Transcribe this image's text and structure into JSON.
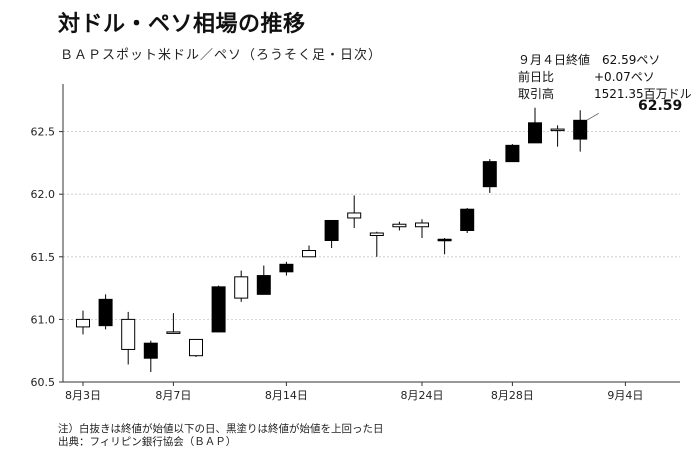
{
  "title": "対ドル・ペソ相場の推移",
  "subtitle": "ＢＡＰスポット米ドル／ペソ（ろうそく足・日次）",
  "info": {
    "header": "９月４日終値　62.59ペソ",
    "rows": [
      {
        "label": "前日比",
        "value": "+0.07ペソ"
      },
      {
        "label": "取引高",
        "value": "1521.35百万ドル"
      }
    ]
  },
  "last_value_label": "62.59",
  "footnote": {
    "note": "注）白抜きは終値が始値以下の日、黒塗りは終値が始値を上回った日",
    "source": "出典：フィリピン銀行協会（ＢＡＰ）"
  },
  "chart_data": {
    "type": "candlestick",
    "ylim": [
      60.5,
      62.88
    ],
    "y_ticks": [
      60.5,
      61.0,
      61.5,
      62.0,
      62.5
    ],
    "y_tick_labels": [
      "60.5",
      "61.0",
      "61.5",
      "62.0",
      "62.5"
    ],
    "x_tick_labels": [
      "8月3日",
      "8月7日",
      "8月14日",
      "8月24日",
      "8月28日",
      "9月4日"
    ],
    "x_tick_index": [
      0,
      4,
      9,
      15,
      19,
      24
    ],
    "grid": "horizontal",
    "legend": "none",
    "colors": {
      "up": "#000000",
      "down": "#ffffff",
      "axis": "#333333",
      "grid": "#c8c8c8"
    },
    "candles": [
      {
        "open": 61.0,
        "high": 61.07,
        "low": 60.88,
        "close": 60.94
      },
      {
        "open": 60.95,
        "high": 61.2,
        "low": 60.92,
        "close": 61.16
      },
      {
        "open": 61.0,
        "high": 61.06,
        "low": 60.64,
        "close": 60.76
      },
      {
        "open": 60.69,
        "high": 60.83,
        "low": 60.58,
        "close": 60.81
      },
      {
        "open": 60.9,
        "high": 61.05,
        "low": 60.89,
        "close": 60.9
      },
      {
        "open": 60.84,
        "high": 60.84,
        "low": 60.7,
        "close": 60.71
      },
      {
        "open": 60.9,
        "high": 61.27,
        "low": 60.9,
        "close": 61.26
      },
      {
        "open": 61.34,
        "high": 61.39,
        "low": 61.14,
        "close": 61.17
      },
      {
        "open": 61.2,
        "high": 61.43,
        "low": 61.2,
        "close": 61.35
      },
      {
        "open": 61.38,
        "high": 61.46,
        "low": 61.35,
        "close": 61.44
      },
      {
        "open": 61.55,
        "high": 61.59,
        "low": 61.5,
        "close": 61.5
      },
      {
        "open": 61.63,
        "high": 61.79,
        "low": 61.57,
        "close": 61.79
      },
      {
        "open": 61.85,
        "high": 61.99,
        "low": 61.73,
        "close": 61.81
      },
      {
        "open": 61.69,
        "high": 61.7,
        "low": 61.5,
        "close": 61.67
      },
      {
        "open": 61.76,
        "high": 61.78,
        "low": 61.71,
        "close": 61.74
      },
      {
        "open": 61.77,
        "high": 61.8,
        "low": 61.65,
        "close": 61.74
      },
      {
        "open": 61.63,
        "high": 61.65,
        "low": 61.52,
        "close": 61.64
      },
      {
        "open": 61.71,
        "high": 61.89,
        "low": 61.69,
        "close": 61.88
      },
      {
        "open": 62.06,
        "high": 62.28,
        "low": 62.01,
        "close": 62.26
      },
      {
        "open": 62.26,
        "high": 62.4,
        "low": 62.26,
        "close": 62.39
      },
      {
        "open": 62.41,
        "high": 62.69,
        "low": 62.41,
        "close": 62.57
      },
      {
        "open": 62.52,
        "high": 62.55,
        "low": 62.38,
        "close": 62.51
      },
      {
        "open": 62.44,
        "high": 62.67,
        "low": 62.34,
        "close": 62.59
      }
    ]
  }
}
